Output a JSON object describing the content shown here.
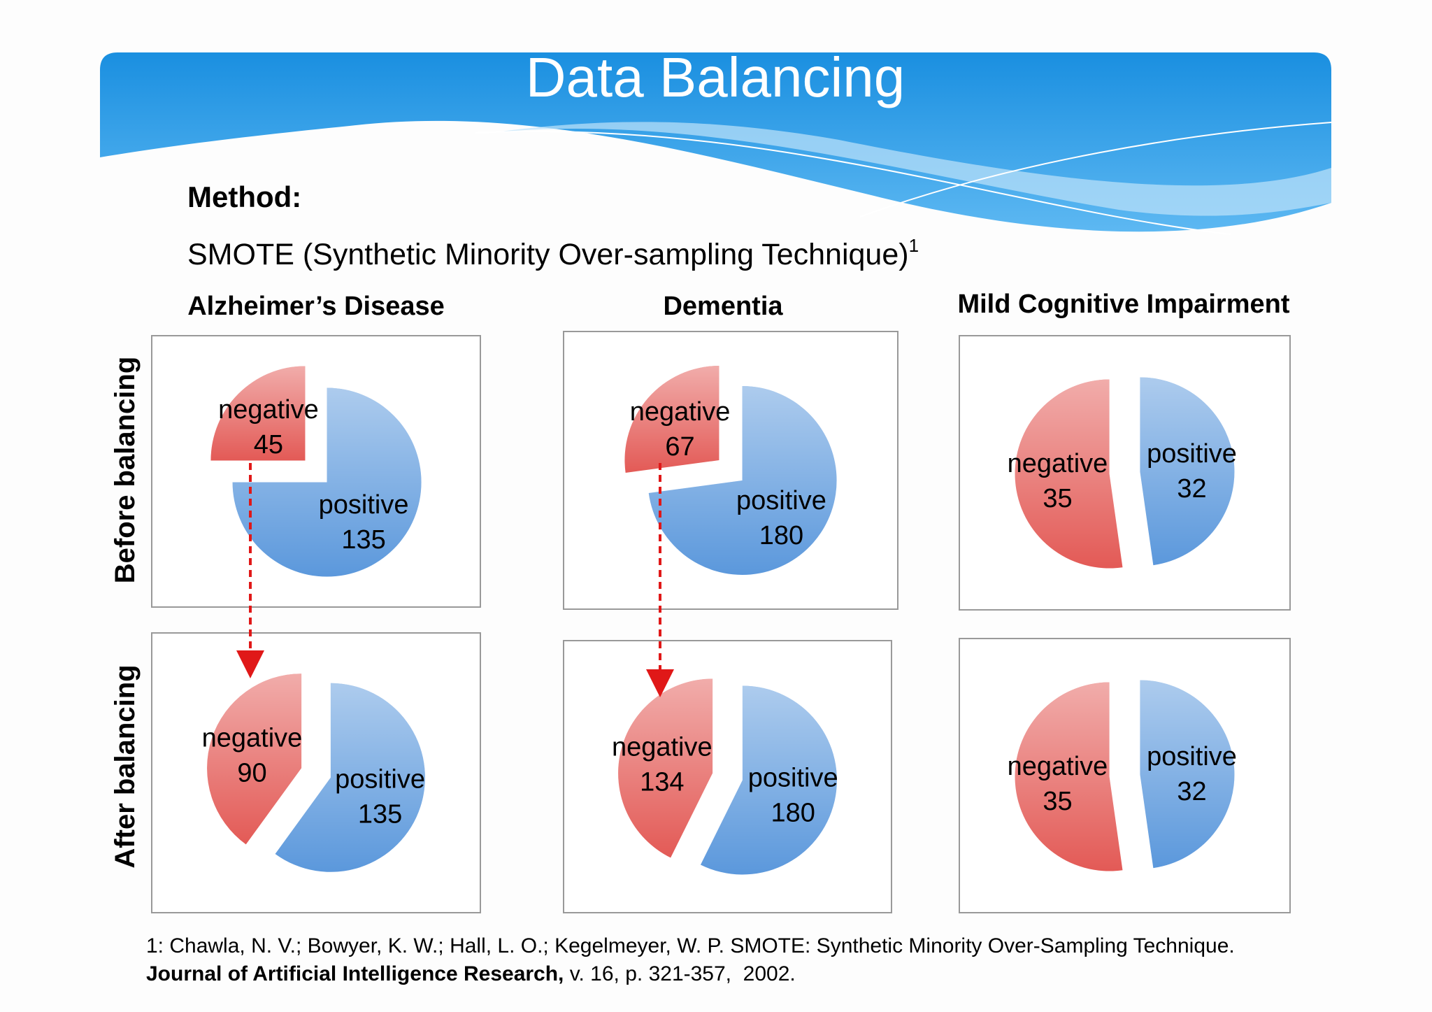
{
  "title": "Data Balancing",
  "method_label": "Method:",
  "method_text": "SMOTE (Synthetic Minority Over-sampling Technique)",
  "method_ref": "1",
  "column_titles": [
    "Alzheimer’s Disease",
    "Dementia",
    "Mild Cognitive Impairment"
  ],
  "row_labels": [
    "Before balancing",
    "After balancing"
  ],
  "chart_data": [
    {
      "type": "pie",
      "categories": [
        "negative",
        "positive"
      ],
      "values": [
        45,
        135
      ],
      "colors": [
        "#e35a56",
        "#5b98dc"
      ]
    },
    {
      "type": "pie",
      "categories": [
        "negative",
        "positive"
      ],
      "values": [
        67,
        180
      ],
      "colors": [
        "#e35a56",
        "#5b98dc"
      ]
    },
    {
      "type": "pie",
      "categories": [
        "negative",
        "positive"
      ],
      "values": [
        35,
        32
      ],
      "colors": [
        "#e35a56",
        "#5b98dc"
      ]
    },
    {
      "type": "pie",
      "categories": [
        "negative",
        "positive"
      ],
      "values": [
        90,
        135
      ],
      "colors": [
        "#e35a56",
        "#5b98dc"
      ]
    },
    {
      "type": "pie",
      "categories": [
        "negative",
        "positive"
      ],
      "values": [
        134,
        180
      ],
      "colors": [
        "#e35a56",
        "#5b98dc"
      ]
    },
    {
      "type": "pie",
      "categories": [
        "negative",
        "positive"
      ],
      "values": [
        35,
        32
      ],
      "colors": [
        "#e35a56",
        "#5b98dc"
      ]
    }
  ],
  "footnote": {
    "line1": "1: Chawla, N. V.; Bowyer, K. W.; Hall, L. O.; Kegelmeyer, W. P. SMOTE: Synthetic Minority Over-Sampling Technique.",
    "journal": "Journal of Artificial Intelligence Research,",
    "details": " v. 16, p. 321-357,  2002."
  }
}
